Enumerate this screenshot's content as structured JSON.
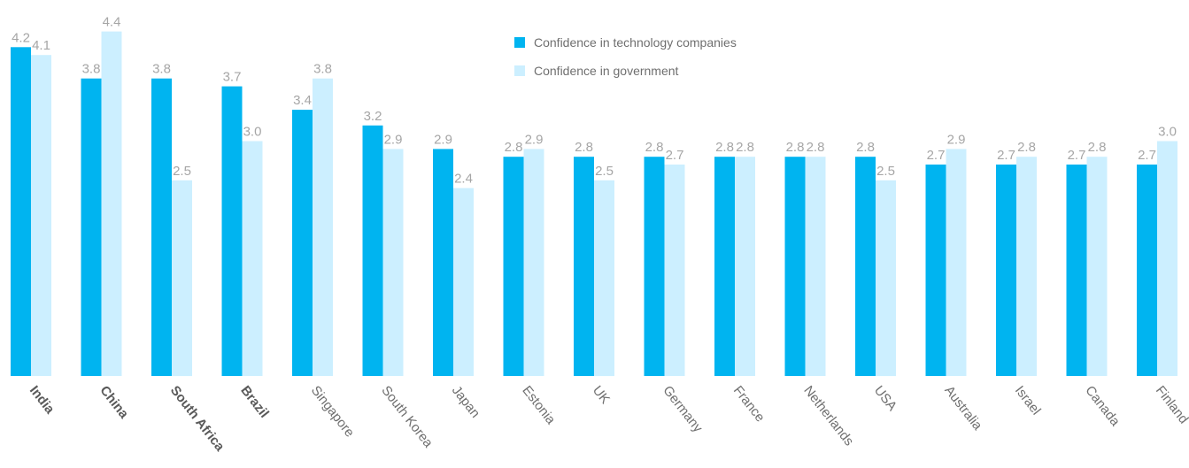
{
  "chart_data": {
    "type": "bar",
    "categories": [
      "India",
      "China",
      "South Africa",
      "Brazil",
      "Singapore",
      "South Korea",
      "Japan",
      "Estonia",
      "UK",
      "Germany",
      "France",
      "Netherlands",
      "USA",
      "Australia",
      "Israel",
      "Canada",
      "Finland"
    ],
    "bold_categories": [
      "India",
      "China",
      "South Africa",
      "Brazil"
    ],
    "series": [
      {
        "name": "Confidence in technology companies",
        "color": "#00b4f0",
        "values": [
          4.2,
          3.8,
          3.8,
          3.7,
          3.4,
          3.2,
          2.9,
          2.8,
          2.8,
          2.8,
          2.8,
          2.8,
          2.8,
          2.7,
          2.7,
          2.7,
          2.7
        ],
        "labels": [
          "4.2",
          "3.8",
          "3.8",
          "3.7",
          "3.4",
          "3.2",
          "2.9",
          "2.8",
          "2.8",
          "2.8",
          "2.8",
          "2.8",
          "2.8",
          "2.7",
          "2.7",
          "2.7",
          "2.7"
        ]
      },
      {
        "name": "Confidence in government",
        "color": "#ccefff",
        "values": [
          4.1,
          4.4,
          2.5,
          3.0,
          3.8,
          2.9,
          2.4,
          2.9,
          2.5,
          2.7,
          2.8,
          2.8,
          2.5,
          2.9,
          2.8,
          2.8,
          3.0
        ],
        "labels": [
          "4.1",
          "4.4",
          "2.5",
          "3.0",
          "3.8",
          "2.9",
          "2.4",
          "2.9",
          "2.5",
          "2.7",
          "2.8",
          "2.8",
          "2.5",
          "2.9",
          "2.8",
          "2.8",
          "3.0"
        ]
      }
    ],
    "ylim": [
      0,
      4.5
    ],
    "grid": false,
    "legend_position": "top-center"
  }
}
